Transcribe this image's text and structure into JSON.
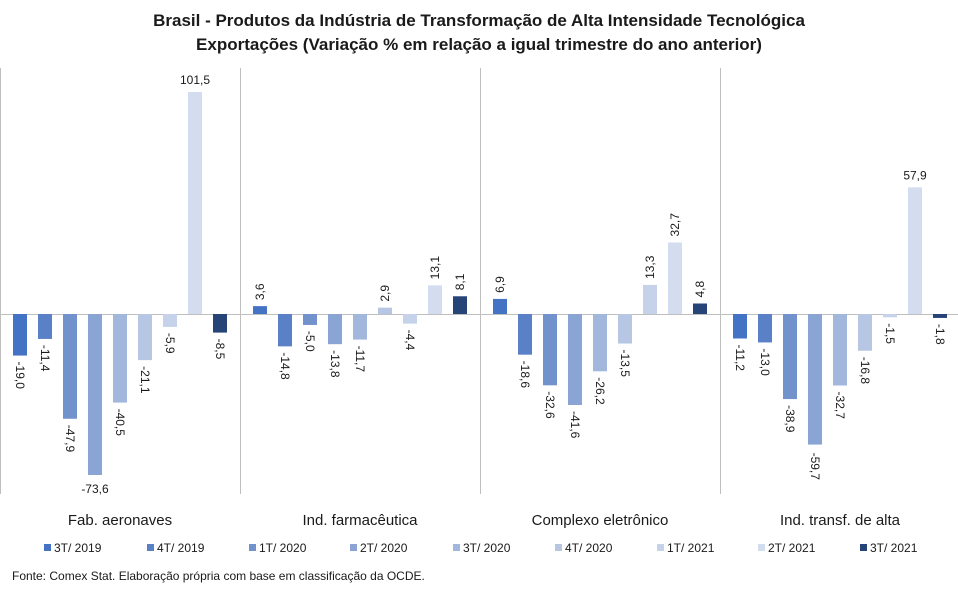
{
  "title": "Brasil - Produtos da Indústria de Transformação de Alta Intensidade Tecnológica",
  "subtitle": "Exportações (Variação % em relação a igual trimestre do ano anterior)",
  "source": "Fonte: Comex Stat. Elaboração própria com base em classificação da OCDE.",
  "chart_data": {
    "type": "bar",
    "categories": [
      "Fab. aeronaves",
      "Ind. farmacêutica",
      "Complexo eletrônico",
      "Ind. transf. de alta"
    ],
    "series": [
      {
        "name": "3T/ 2019",
        "color": "#4472c4",
        "values": [
          -19.0,
          3.6,
          6.9,
          -11.2
        ],
        "labels": [
          "-19,0",
          "3,6",
          "6,9",
          "-11,2"
        ]
      },
      {
        "name": "4T/ 2019",
        "color": "#5a81c7",
        "values": [
          -11.4,
          -14.8,
          -18.6,
          -13.0
        ],
        "labels": [
          "-11,4",
          "-14,8",
          "-18,6",
          "-13,0"
        ]
      },
      {
        "name": "1T/ 2020",
        "color": "#7192ca",
        "values": [
          -47.9,
          -5.0,
          -32.6,
          -38.9
        ],
        "labels": [
          "-47,9",
          "-5,0",
          "-32,6",
          "-38,9"
        ]
      },
      {
        "name": "2T/ 2020",
        "color": "#8aa5d4",
        "values": [
          -73.6,
          -13.8,
          -41.6,
          -59.7
        ],
        "labels": [
          "-73,6",
          "-13,8",
          "-41,6",
          "-59,7"
        ]
      },
      {
        "name": "3T/ 2020",
        "color": "#a2b7dc",
        "values": [
          -40.5,
          -11.7,
          -26.2,
          -32.7
        ],
        "labels": [
          "-40,5",
          "-11,7",
          "-26,2",
          "-32,7"
        ]
      },
      {
        "name": "4T/ 2020",
        "color": "#b6c6e3",
        "values": [
          -21.1,
          2.9,
          -13.5,
          -16.8
        ],
        "labels": [
          "-21,1",
          "2,9",
          "-13,5",
          "-16,8"
        ]
      },
      {
        "name": "1T/ 2021",
        "color": "#c5d2ea",
        "values": [
          -5.9,
          -4.4,
          13.3,
          -1.5
        ],
        "labels": [
          "-5,9",
          "-4,4",
          "13,3",
          "-1,5"
        ]
      },
      {
        "name": "2T/ 2021",
        "color": "#d3ddef",
        "values": [
          101.5,
          13.1,
          32.7,
          57.9
        ],
        "labels": [
          "101,5",
          "13,1",
          "32,7",
          "57,9"
        ]
      },
      {
        "name": "3T/ 2021",
        "color": "#264478",
        "values": [
          -8.5,
          8.1,
          4.8,
          -1.8
        ],
        "labels": [
          "-8,5",
          "8,1",
          "4,8",
          "-1,8"
        ]
      }
    ],
    "ylim": [
      -80,
      110
    ],
    "grid": false,
    "legend_position": "bottom"
  }
}
